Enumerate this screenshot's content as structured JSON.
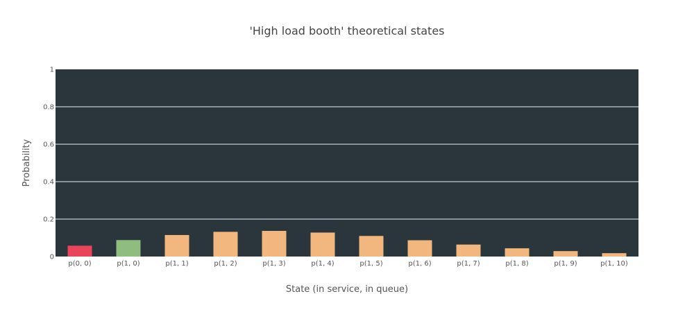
{
  "chart_data": {
    "type": "bar",
    "title": "'High load booth' theoretical states",
    "xlabel": "State (in service, in queue)",
    "ylabel": "Probability",
    "ylim": [
      0,
      1
    ],
    "yticks": [
      0,
      0.2,
      0.4,
      0.6,
      0.8,
      1
    ],
    "ytick_labels": [
      "0",
      "0.2",
      "0.4",
      "0.6",
      "0.8",
      "1"
    ],
    "grid": true,
    "categories": [
      "p(0, 0)",
      "p(1, 0)",
      "p(1, 1)",
      "p(1, 2)",
      "p(1, 3)",
      "p(1, 4)",
      "p(1, 5)",
      "p(1, 6)",
      "p(1, 7)",
      "p(1, 8)",
      "p(1, 9)",
      "p(1, 10)"
    ],
    "values": [
      0.058,
      0.088,
      0.115,
      0.132,
      0.137,
      0.128,
      0.11,
      0.087,
      0.064,
      0.044,
      0.029,
      0.018
    ],
    "bar_colors": [
      "#e8445a",
      "#8fbc7f",
      "#f2b77e",
      "#f2b77e",
      "#f2b77e",
      "#f2b77e",
      "#f2b77e",
      "#f2b77e",
      "#f2b77e",
      "#f2b77e",
      "#f2b77e",
      "#f2b77e"
    ],
    "plot_background": "#2b353c",
    "grid_color": "#a9b0b5"
  }
}
